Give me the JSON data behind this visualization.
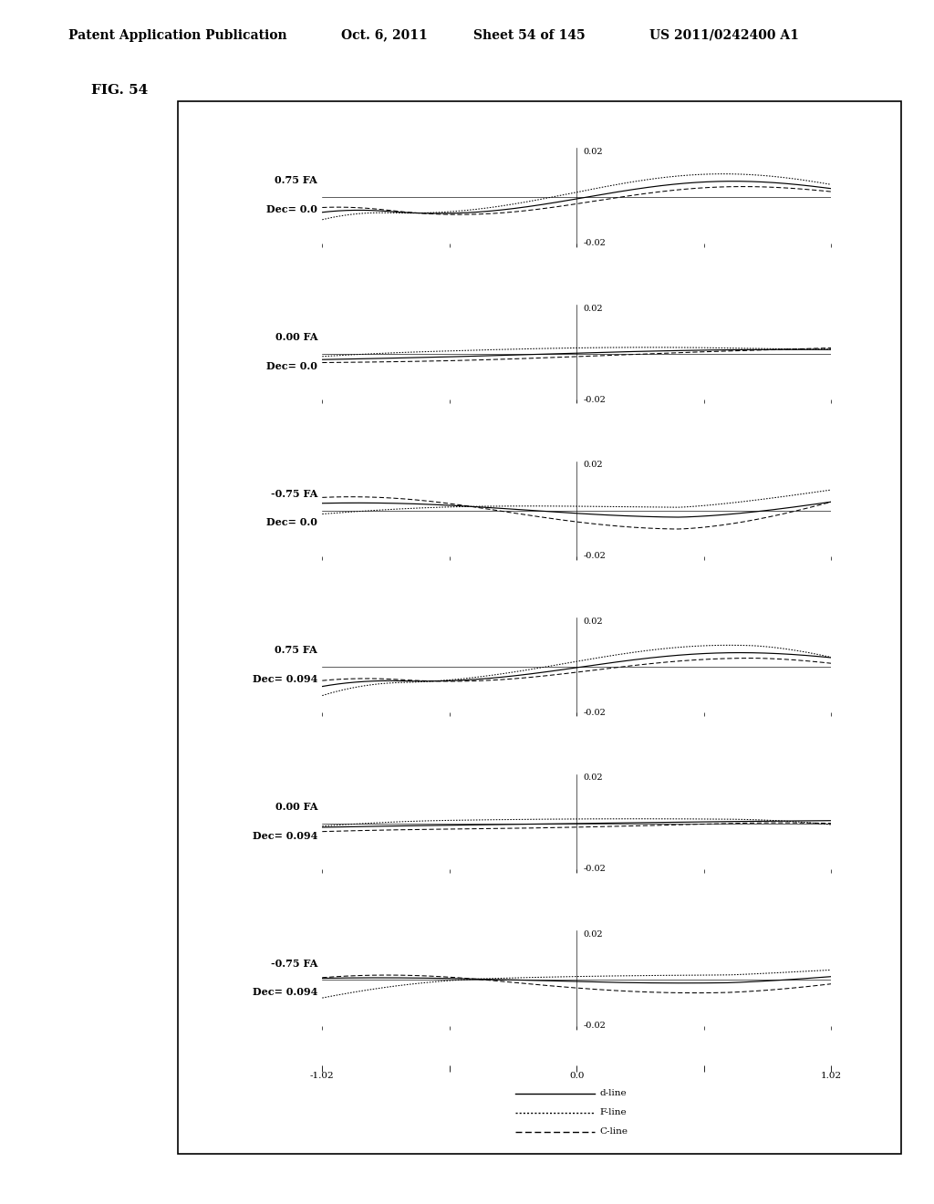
{
  "figure_label": "FIG. 54",
  "header_left": "Patent Application Publication",
  "header_date": "Oct. 6, 2011",
  "header_sheet": "Sheet 54 of 145",
  "header_patent": "US 2011/0242400 A1",
  "xlim": [
    -1.02,
    1.02
  ],
  "ylim": [
    -0.025,
    0.025
  ],
  "xtick_vals": [
    -1.02,
    -0.51,
    0.0,
    0.51,
    1.02
  ],
  "subplots": [
    {
      "label_fa": "0.75 FA",
      "label_dec": "Dec= 0.0"
    },
    {
      "label_fa": "0.00 FA",
      "label_dec": "Dec= 0.0"
    },
    {
      "label_fa": "-0.75 FA",
      "label_dec": "Dec= 0.0"
    },
    {
      "label_fa": "0.75 FA",
      "label_dec": "Dec= 0.094"
    },
    {
      "label_fa": "0.00 FA",
      "label_dec": "Dec= 0.094"
    },
    {
      "label_fa": "-0.75 FA",
      "label_dec": "Dec= 0.094"
    }
  ],
  "background_color": "#ffffff",
  "fontsize_label": 8,
  "fontsize_tick": 7.5,
  "fontsize_header": 10,
  "fontsize_figlabel": 11
}
